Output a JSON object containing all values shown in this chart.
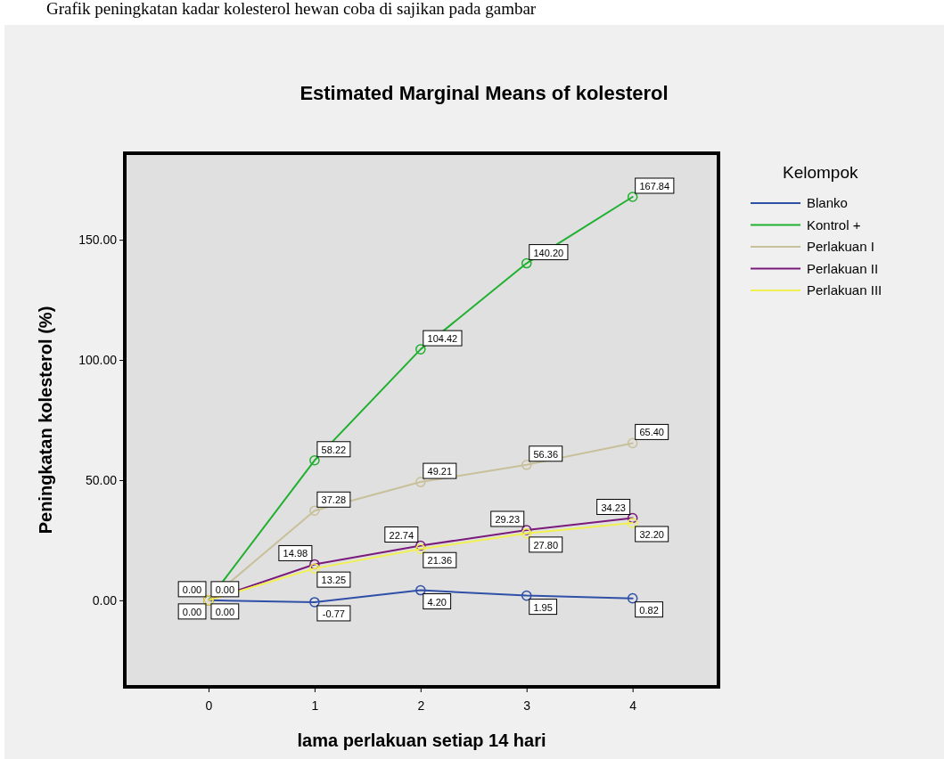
{
  "chart_data": {
    "type": "line",
    "title": "Estimated Marginal Means of kolesterol",
    "xlabel": "lama perlakuan setiap 14 hari",
    "ylabel": "Peningkatan kolesterol (%)",
    "legend_title": "Kelompok",
    "annotations": [
      "Grafik peningkatan kadar kolesterol hewan coba di sajikan pada gambar"
    ],
    "x": [
      0,
      1,
      2,
      3,
      4
    ],
    "series": [
      {
        "name": "Blanko",
        "color": "#3050a8",
        "values": [
          0.0,
          -0.77,
          4.2,
          1.95,
          0.82
        ],
        "value_labels": [
          "0.00",
          "-0.77",
          "4.20",
          "1.95",
          "0.82"
        ]
      },
      {
        "name": "Kontrol +",
        "color": "#20b030",
        "values": [
          0.0,
          58.22,
          104.42,
          140.2,
          167.84
        ],
        "value_labels": [
          "0.00",
          "58.22",
          "104.42",
          "140.20",
          "167.84"
        ]
      },
      {
        "name": "Perlakuan I",
        "color": "#c8c09a",
        "values": [
          0.0,
          37.28,
          49.21,
          56.36,
          65.4
        ],
        "value_labels": [
          "0.00",
          "37.28",
          "49.21",
          "56.36",
          "65.40"
        ]
      },
      {
        "name": "Perlakuan II",
        "color": "#7a1a7a",
        "values": [
          0.0,
          14.98,
          22.74,
          29.23,
          34.23
        ],
        "value_labels": [
          "0.00",
          "14.98",
          "22.74",
          "29.23",
          "34.23"
        ]
      },
      {
        "name": "Perlakuan III",
        "color": "#f0f050",
        "values": [
          0.0,
          13.25,
          21.36,
          27.8,
          32.2
        ],
        "value_labels": [
          null,
          "13.25",
          "21.36",
          "27.80",
          "32.20"
        ]
      }
    ],
    "xlim": [
      -0.79,
      4.81
    ],
    "xticks": [
      0,
      1,
      2,
      3,
      4
    ],
    "ylim": [
      -36,
      186
    ],
    "yticks": [
      {
        "value": 0,
        "label": "0.00"
      },
      {
        "value": 50,
        "label": "50.00"
      },
      {
        "value": 100,
        "label": "100.00"
      },
      {
        "value": 150,
        "label": "150.00"
      }
    ],
    "grid": false,
    "legend": "top right",
    "marker": "circle",
    "line_style": "solid"
  }
}
